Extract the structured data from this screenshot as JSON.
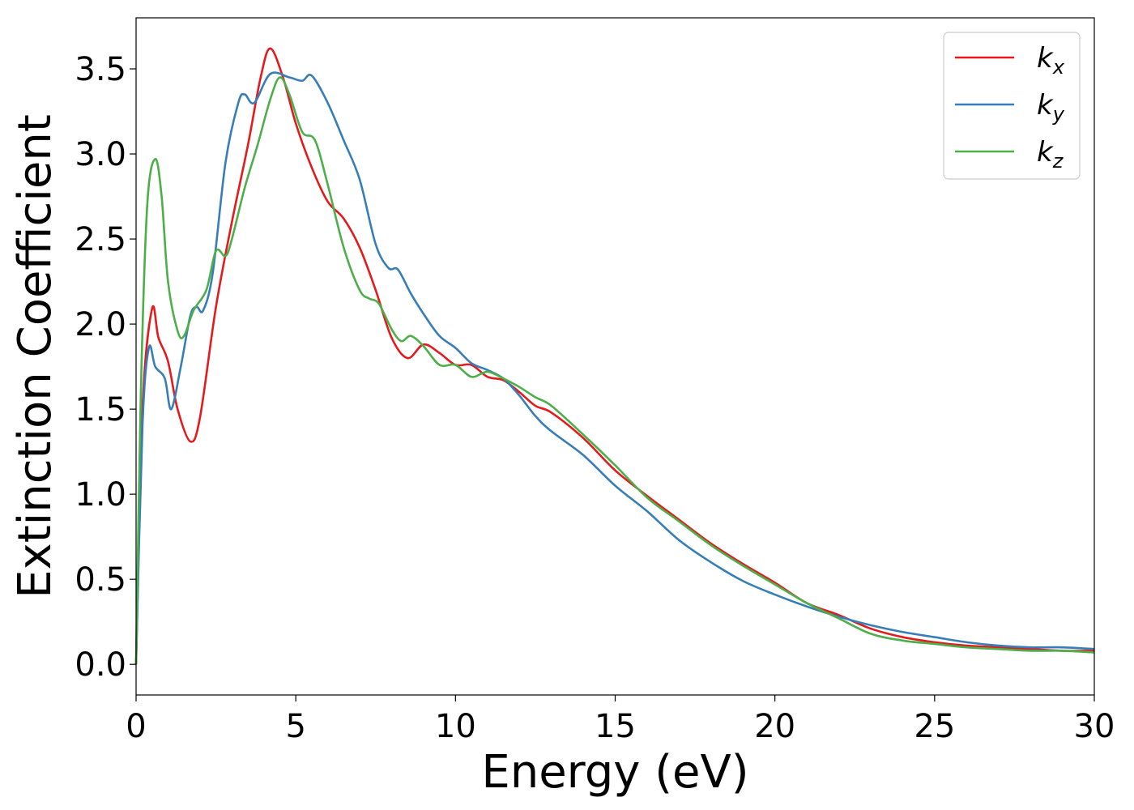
{
  "chart_data": {
    "type": "line",
    "xlabel": "Energy (eV)",
    "ylabel": "Extinction Coefficient",
    "xlim": [
      0,
      30
    ],
    "ylim": [
      -0.18,
      3.8
    ],
    "xticks": [
      0,
      5,
      10,
      15,
      20,
      25,
      30
    ],
    "yticks": [
      0.0,
      0.5,
      1.0,
      1.5,
      2.0,
      2.5,
      3.0,
      3.5
    ],
    "xtick_labels": [
      "0",
      "5",
      "10",
      "15",
      "20",
      "25",
      "30"
    ],
    "ytick_labels": [
      "0.0",
      "0.5",
      "1.0",
      "1.5",
      "2.0",
      "2.5",
      "3.0",
      "3.5"
    ],
    "grid": false,
    "legend_position": "top-right",
    "series": [
      {
        "name": "k_x",
        "label_base": "k",
        "label_sub": "x",
        "color": "#e41a1c",
        "points": [
          [
            0,
            0
          ],
          [
            0.2,
            1.5
          ],
          [
            0.5,
            2.09
          ],
          [
            0.7,
            1.92
          ],
          [
            1.0,
            1.78
          ],
          [
            1.3,
            1.5
          ],
          [
            1.7,
            1.31
          ],
          [
            2.0,
            1.45
          ],
          [
            2.5,
            2.1
          ],
          [
            3.0,
            2.6
          ],
          [
            3.5,
            3.05
          ],
          [
            3.9,
            3.45
          ],
          [
            4.2,
            3.62
          ],
          [
            4.6,
            3.45
          ],
          [
            5.0,
            3.18
          ],
          [
            5.5,
            2.92
          ],
          [
            6.0,
            2.72
          ],
          [
            6.5,
            2.62
          ],
          [
            7.0,
            2.45
          ],
          [
            7.5,
            2.2
          ],
          [
            8.0,
            1.92
          ],
          [
            8.5,
            1.8
          ],
          [
            9.0,
            1.88
          ],
          [
            9.5,
            1.83
          ],
          [
            10.0,
            1.76
          ],
          [
            10.5,
            1.76
          ],
          [
            11.0,
            1.69
          ],
          [
            11.5,
            1.67
          ],
          [
            12.0,
            1.6
          ],
          [
            12.5,
            1.52
          ],
          [
            13.0,
            1.48
          ],
          [
            14.0,
            1.33
          ],
          [
            15.0,
            1.14
          ],
          [
            16.0,
            0.99
          ],
          [
            17.0,
            0.85
          ],
          [
            18.0,
            0.71
          ],
          [
            19.0,
            0.59
          ],
          [
            20.0,
            0.48
          ],
          [
            21.0,
            0.36
          ],
          [
            22.0,
            0.29
          ],
          [
            23.0,
            0.21
          ],
          [
            24.0,
            0.16
          ],
          [
            25.0,
            0.13
          ],
          [
            26.0,
            0.11
          ],
          [
            27.0,
            0.1
          ],
          [
            28.0,
            0.09
          ],
          [
            29.0,
            0.08
          ],
          [
            30.0,
            0.08
          ]
        ]
      },
      {
        "name": "k_y",
        "label_base": "k",
        "label_sub": "y",
        "color": "#377eb8",
        "points": [
          [
            0,
            0
          ],
          [
            0.2,
            1.4
          ],
          [
            0.4,
            1.86
          ],
          [
            0.6,
            1.75
          ],
          [
            0.9,
            1.68
          ],
          [
            1.1,
            1.5
          ],
          [
            1.4,
            1.75
          ],
          [
            1.7,
            2.05
          ],
          [
            1.9,
            2.1
          ],
          [
            2.1,
            2.08
          ],
          [
            2.4,
            2.3
          ],
          [
            2.8,
            2.95
          ],
          [
            3.2,
            3.3
          ],
          [
            3.4,
            3.35
          ],
          [
            3.7,
            3.3
          ],
          [
            4.2,
            3.47
          ],
          [
            4.8,
            3.45
          ],
          [
            5.2,
            3.43
          ],
          [
            5.5,
            3.46
          ],
          [
            6.0,
            3.3
          ],
          [
            6.5,
            3.08
          ],
          [
            7.0,
            2.85
          ],
          [
            7.5,
            2.47
          ],
          [
            7.9,
            2.33
          ],
          [
            8.2,
            2.32
          ],
          [
            8.6,
            2.18
          ],
          [
            9.0,
            2.06
          ],
          [
            9.5,
            1.93
          ],
          [
            10.0,
            1.86
          ],
          [
            10.5,
            1.77
          ],
          [
            11.0,
            1.73
          ],
          [
            11.5,
            1.68
          ],
          [
            12.0,
            1.58
          ],
          [
            12.5,
            1.46
          ],
          [
            13.0,
            1.37
          ],
          [
            14.0,
            1.23
          ],
          [
            15.0,
            1.05
          ],
          [
            16.0,
            0.9
          ],
          [
            17.0,
            0.73
          ],
          [
            18.0,
            0.6
          ],
          [
            19.0,
            0.49
          ],
          [
            20.0,
            0.41
          ],
          [
            21.0,
            0.34
          ],
          [
            22.0,
            0.28
          ],
          [
            23.0,
            0.23
          ],
          [
            24.0,
            0.19
          ],
          [
            25.0,
            0.16
          ],
          [
            26.0,
            0.13
          ],
          [
            27.0,
            0.11
          ],
          [
            28.0,
            0.1
          ],
          [
            29.0,
            0.1
          ],
          [
            30.0,
            0.09
          ]
        ]
      },
      {
        "name": "k_z",
        "label_base": "k",
        "label_sub": "z",
        "color": "#4daf4a",
        "points": [
          [
            0,
            0
          ],
          [
            0.15,
            1.6
          ],
          [
            0.35,
            2.7
          ],
          [
            0.6,
            2.97
          ],
          [
            0.8,
            2.75
          ],
          [
            1.0,
            2.25
          ],
          [
            1.3,
            1.96
          ],
          [
            1.5,
            1.93
          ],
          [
            1.8,
            2.08
          ],
          [
            2.2,
            2.2
          ],
          [
            2.5,
            2.43
          ],
          [
            2.8,
            2.4
          ],
          [
            3.0,
            2.5
          ],
          [
            3.4,
            2.8
          ],
          [
            3.8,
            3.05
          ],
          [
            4.2,
            3.32
          ],
          [
            4.5,
            3.45
          ],
          [
            4.8,
            3.35
          ],
          [
            5.2,
            3.13
          ],
          [
            5.6,
            3.08
          ],
          [
            6.0,
            2.82
          ],
          [
            6.5,
            2.45
          ],
          [
            7.0,
            2.2
          ],
          [
            7.3,
            2.15
          ],
          [
            7.6,
            2.12
          ],
          [
            8.0,
            1.97
          ],
          [
            8.3,
            1.9
          ],
          [
            8.6,
            1.93
          ],
          [
            9.0,
            1.87
          ],
          [
            9.5,
            1.76
          ],
          [
            10.0,
            1.76
          ],
          [
            10.5,
            1.69
          ],
          [
            11.0,
            1.72
          ],
          [
            11.5,
            1.68
          ],
          [
            12.0,
            1.63
          ],
          [
            12.5,
            1.57
          ],
          [
            13.0,
            1.52
          ],
          [
            14.0,
            1.35
          ],
          [
            15.0,
            1.17
          ],
          [
            16.0,
            0.98
          ],
          [
            17.0,
            0.84
          ],
          [
            18.0,
            0.7
          ],
          [
            19.0,
            0.58
          ],
          [
            20.0,
            0.47
          ],
          [
            21.0,
            0.36
          ],
          [
            22.0,
            0.27
          ],
          [
            23.0,
            0.18
          ],
          [
            24.0,
            0.14
          ],
          [
            25.0,
            0.12
          ],
          [
            26.0,
            0.1
          ],
          [
            27.0,
            0.09
          ],
          [
            28.0,
            0.08
          ],
          [
            29.0,
            0.08
          ],
          [
            30.0,
            0.07
          ]
        ]
      }
    ]
  }
}
